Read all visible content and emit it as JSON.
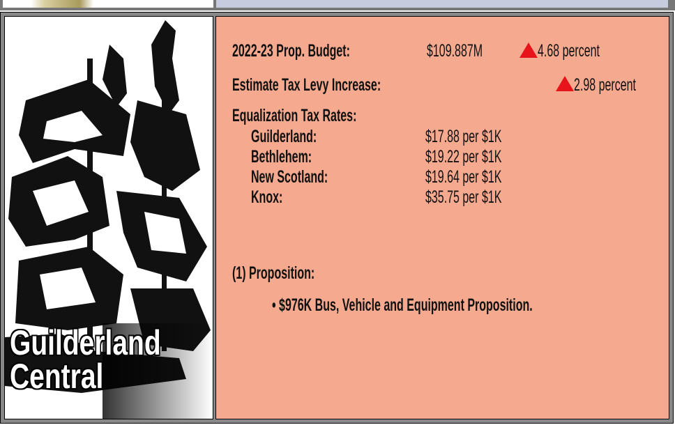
{
  "budget": {
    "label": "2022-23 Prop. Budget:",
    "value": "$109.887M",
    "change": "4.68 percent"
  },
  "levy": {
    "label": "Estimate Tax Levy Increase:",
    "change": "2.98 percent"
  },
  "rates": {
    "heading": "Equalization Tax Rates:",
    "rows": [
      {
        "town": "Guilderland:",
        "rate": "$17.88 per $1K"
      },
      {
        "town": "Bethlehem:",
        "rate": "$19.22 per $1K"
      },
      {
        "town": "New Scotland:",
        "rate": "$19.64 per $1K"
      },
      {
        "town": "Knox:",
        "rate": "$35.75 per $1K"
      }
    ]
  },
  "proposition": {
    "heading": "(1) Proposition:",
    "items": [
      "$976K Bus, Vehicle and Equipment Proposition."
    ]
  },
  "caption": [
    "Guilderland",
    "Central"
  ]
}
